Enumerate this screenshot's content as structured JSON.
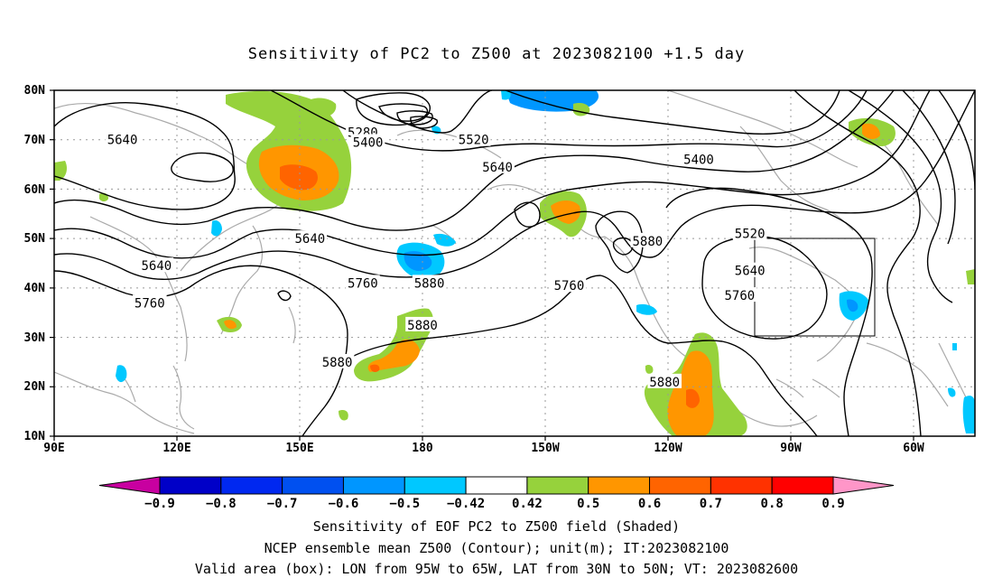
{
  "title": "Sensitivity of PC2 to Z500 at 2023082100 +1.5 day",
  "lat_ticks": [
    "80N",
    "70N",
    "60N",
    "50N",
    "40N",
    "30N",
    "20N",
    "10N"
  ],
  "lon_ticks": [
    "90E",
    "120E",
    "150E",
    "180",
    "150W",
    "120W",
    "90W",
    "60W"
  ],
  "contour_labels": [
    {
      "text": "5640",
      "lon": 110,
      "lat": 70
    },
    {
      "text": "5280",
      "lon": 180.5,
      "lat": 71.5
    },
    {
      "text": "5400",
      "lon": 182,
      "lat": 69.5
    },
    {
      "text": "5520",
      "lon": 213,
      "lat": 70
    },
    {
      "text": "5640",
      "lon": 220,
      "lat": 64.5
    },
    {
      "text": "5400",
      "lon": 279,
      "lat": 66
    },
    {
      "text": "5640",
      "lon": 120,
      "lat": 44.5
    },
    {
      "text": "5640",
      "lon": 165,
      "lat": 50
    },
    {
      "text": "5760",
      "lon": 180.5,
      "lat": 41
    },
    {
      "text": "5880",
      "lon": 200,
      "lat": 41
    },
    {
      "text": "5760",
      "lon": 241,
      "lat": 40.5
    },
    {
      "text": "5880",
      "lon": 264,
      "lat": 49.5
    },
    {
      "text": "5520",
      "lon": 294,
      "lat": 51
    },
    {
      "text": "5640",
      "lon": 294,
      "lat": 43.5
    },
    {
      "text": "5760",
      "lon": 291,
      "lat": 38.5
    },
    {
      "text": "5760",
      "lon": 118,
      "lat": 37
    },
    {
      "text": "5880",
      "lon": 198,
      "lat": 32.5
    },
    {
      "text": "5880",
      "lon": 173,
      "lat": 25
    },
    {
      "text": "5880",
      "lon": 269,
      "lat": 21
    }
  ],
  "colorbar": {
    "colors": [
      "#c800a0",
      "#0000c8",
      "#0028f0",
      "#0050f0",
      "#0096ff",
      "#00c8ff",
      "#ffffff",
      "#96d23c",
      "#ff9600",
      "#ff6400",
      "#ff3200",
      "#ff0000",
      "#ff96c8"
    ],
    "labels": [
      "-0.9",
      "-0.8",
      "-0.7",
      "-0.6",
      "-0.5",
      "-0.42",
      "0.42",
      "0.5",
      "0.6",
      "0.7",
      "0.8",
      "0.9"
    ]
  },
  "footer": {
    "line1": "Sensitivity of EOF PC2 to Z500 field (Shaded)",
    "line2": "NCEP ensemble mean Z500 (Contour); unit(m); IT:2023082100",
    "line3": "Valid area (box): LON from 95W to 65W, LAT from 30N to 50N; VT: 2023082600"
  }
}
